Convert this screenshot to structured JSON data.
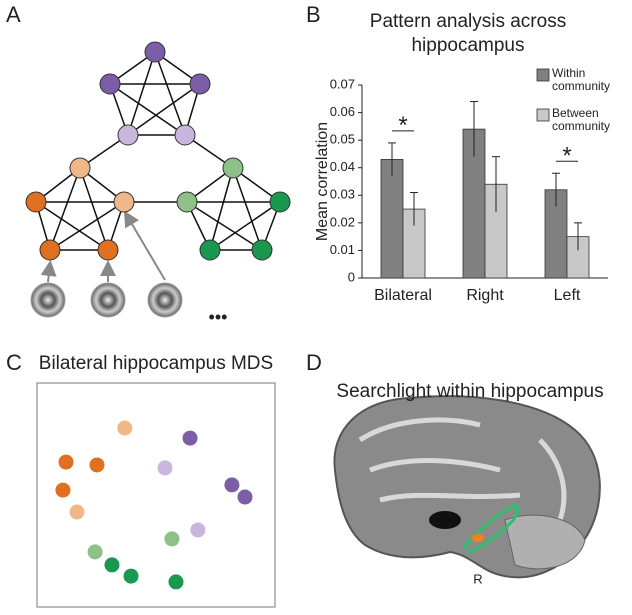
{
  "panel_labels": [
    "A",
    "B",
    "C",
    "D"
  ],
  "network_more": "•••",
  "chart_data": [
    {
      "type": "bar",
      "title": [
        "Pattern analysis across",
        "hippocampus"
      ],
      "y_label": "Mean correlation",
      "categories": [
        "Bilateral",
        "Right",
        "Left"
      ],
      "series": [
        {
          "name": "Within community",
          "color": "#808080",
          "values": [
            0.043,
            0.054,
            0.032
          ],
          "errors": [
            0.006,
            0.01,
            0.006
          ]
        },
        {
          "name": "Between community",
          "color": "#c8c8c8",
          "values": [
            0.025,
            0.034,
            0.015
          ],
          "errors": [
            0.006,
            0.01,
            0.005
          ]
        }
      ],
      "annotations": [
        "*",
        null,
        "*"
      ],
      "ylim": [
        0,
        0.07
      ],
      "yticks": [
        0,
        0.01,
        0.02,
        0.03,
        0.04,
        0.05,
        0.06,
        0.07
      ],
      "grid": false
    },
    {
      "type": "scatter",
      "title": "Bilateral hippocampus MDS",
      "xlim": [
        0,
        100
      ],
      "ylim": [
        0,
        100
      ],
      "series": [
        {
          "color": "#e07020",
          "x": [
            12.2,
            25.2,
            10.9
          ],
          "y": [
            64.7,
            63.4,
            52.2
          ]
        },
        {
          "color": "#f0b888",
          "x": [
            36.9,
            16.8
          ],
          "y": [
            79.9,
            42.4
          ]
        },
        {
          "color": "#7b5ea7",
          "x": [
            64.3,
            81.9,
            87.4
          ],
          "y": [
            75.4,
            54.5,
            49.1
          ]
        },
        {
          "color": "#c9b6dc",
          "x": [
            53.8,
            67.6
          ],
          "y": [
            62.1,
            34.4
          ]
        },
        {
          "color": "#8fc08a",
          "x": [
            24.4,
            56.7
          ],
          "y": [
            24.6,
            30.4
          ]
        },
        {
          "color": "#1a9850",
          "x": [
            31.5,
            39.5,
            58.4
          ],
          "y": [
            18.8,
            13.8,
            11.2
          ]
        }
      ]
    }
  ],
  "searchlight": {
    "title": "Searchlight within hippocampus",
    "side_label": "R"
  }
}
